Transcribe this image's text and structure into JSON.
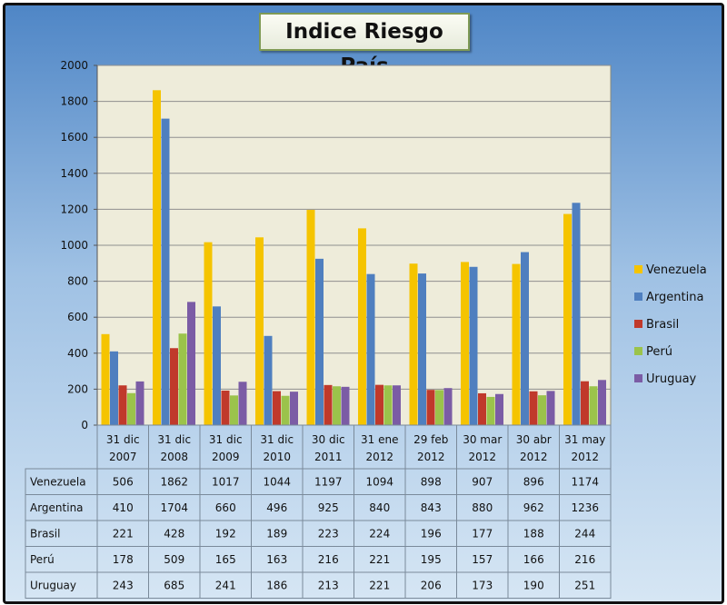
{
  "title": "Indice Riesgo País",
  "chart_data": {
    "type": "bar",
    "title": "Indice Riesgo País",
    "categories": [
      [
        "31 dic",
        "2007"
      ],
      [
        "31 dic",
        "2008"
      ],
      [
        "31 dic",
        "2009"
      ],
      [
        "31 dic",
        "2010"
      ],
      [
        "30 dic",
        "2011"
      ],
      [
        "31 ene",
        "2012"
      ],
      [
        "29 feb",
        "2012"
      ],
      [
        "30 mar",
        "2012"
      ],
      [
        "30 abr",
        "2012"
      ],
      [
        "31 may",
        "2012"
      ]
    ],
    "series": [
      {
        "name": "Venezuela",
        "color": "#f5c400",
        "values": [
          506,
          1862,
          1017,
          1044,
          1197,
          1094,
          898,
          907,
          896,
          1174
        ]
      },
      {
        "name": "Argentina",
        "color": "#4f7fbf",
        "values": [
          410,
          1704,
          660,
          496,
          925,
          840,
          843,
          880,
          962,
          1236
        ]
      },
      {
        "name": "Brasil",
        "color": "#c0392b",
        "values": [
          221,
          428,
          192,
          189,
          223,
          224,
          196,
          177,
          188,
          244
        ]
      },
      {
        "name": "Perú",
        "color": "#9bc34b",
        "values": [
          178,
          509,
          165,
          163,
          216,
          221,
          195,
          157,
          166,
          216
        ]
      },
      {
        "name": "Uruguay",
        "color": "#7b5ca5",
        "values": [
          243,
          685,
          241,
          186,
          213,
          221,
          206,
          173,
          190,
          251
        ]
      }
    ],
    "ylim": [
      0,
      2000
    ],
    "yticks": [
      0,
      200,
      400,
      600,
      800,
      1000,
      1200,
      1400,
      1600,
      1800,
      2000
    ],
    "grid": true,
    "legend": "right",
    "data_table": true
  }
}
